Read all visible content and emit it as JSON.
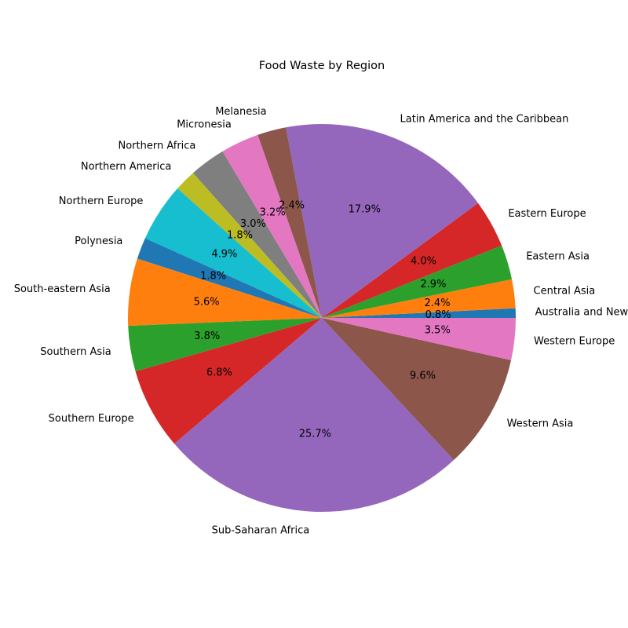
{
  "chart_data": {
    "type": "pie",
    "title": "Food Waste by Region",
    "start_angle_deg": 0,
    "direction": "counterclockwise",
    "label_format": "percent_one_decimal",
    "slices": [
      {
        "label": "Australia and New Zealand",
        "percent": 0.8,
        "color": "#1f77b4"
      },
      {
        "label": "Central Asia",
        "percent": 2.4,
        "color": "#ff7f0e"
      },
      {
        "label": "Eastern Asia",
        "percent": 2.9,
        "color": "#2ca02c"
      },
      {
        "label": "Eastern Europe",
        "percent": 4.0,
        "color": "#d62728"
      },
      {
        "label": "Latin America and the Caribbean",
        "percent": 17.9,
        "color": "#9467bd"
      },
      {
        "label": "Melanesia",
        "percent": 2.4,
        "color": "#8c564b"
      },
      {
        "label": "Micronesia",
        "percent": 3.2,
        "color": "#e377c2"
      },
      {
        "label": "Northern Africa",
        "percent": 3.0,
        "color": "#7f7f7f"
      },
      {
        "label": "Northern America",
        "percent": 1.8,
        "color": "#bcbd22"
      },
      {
        "label": "Northern Europe",
        "percent": 4.9,
        "color": "#17becf"
      },
      {
        "label": "Polynesia",
        "percent": 1.8,
        "color": "#1f77b4"
      },
      {
        "label": "South-eastern Asia",
        "percent": 5.6,
        "color": "#ff7f0e"
      },
      {
        "label": "Southern Asia",
        "percent": 3.8,
        "color": "#2ca02c"
      },
      {
        "label": "Southern Europe",
        "percent": 6.8,
        "color": "#d62728"
      },
      {
        "label": "Sub-Saharan Africa",
        "percent": 25.7,
        "color": "#9467bd"
      },
      {
        "label": "Western Asia",
        "percent": 9.6,
        "color": "#8c564b"
      },
      {
        "label": "Western Europe",
        "percent": 3.5,
        "color": "#e377c2"
      }
    ]
  }
}
